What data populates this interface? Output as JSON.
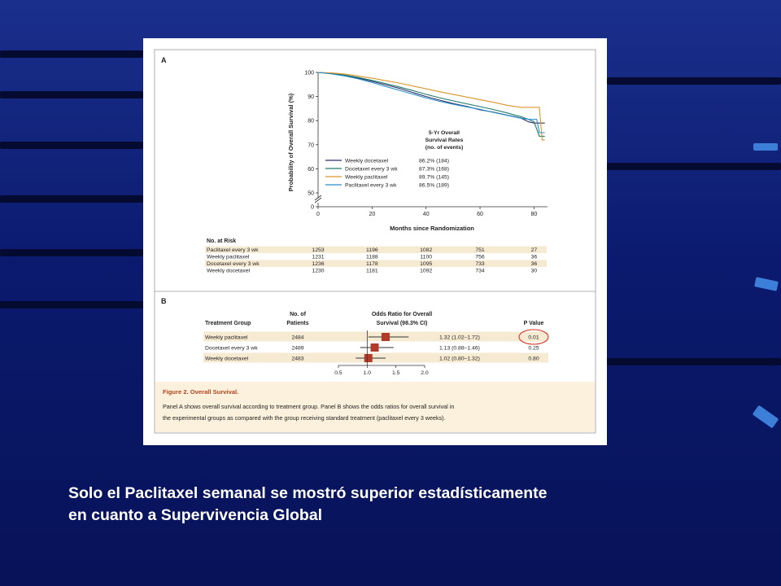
{
  "slide": {
    "caption_line1": "Solo el Paclitaxel semanal se mostró superior estadísticamente",
    "caption_line2": "en cuanto a Supervivencia Global",
    "background_color": "#0b1a6e"
  },
  "figure": {
    "panel_a_label": "A",
    "panel_b_label": "B",
    "caption_title": "Figure 2. Overall Survival.",
    "caption_line1": "Panel A shows overall survival according to treatment group. Panel B shows the odds ratios for overall survival in",
    "caption_line2": "the experimental groups as compared with the group receiving standard treatment (paclitaxel every 3 weeks)."
  },
  "chart_data": [
    {
      "type": "line",
      "xlabel": "Months since Randomization",
      "ylabel": "Probability of Overall Survival (%)",
      "xlim": [
        0,
        85
      ],
      "ylim": [
        0,
        100
      ],
      "y_axis_break": true,
      "x_ticks": [
        "0",
        "20",
        "40",
        "60",
        "80"
      ],
      "y_ticks": [
        "0",
        "50",
        "60",
        "70",
        "80",
        "90",
        "100"
      ],
      "legend_title": [
        "5-Yr Overall",
        "Survival Rates",
        "(no. of events)"
      ],
      "legend_position": "lower-center",
      "series": [
        {
          "name": "Weekly docetaxel",
          "rate": "86.2% (184)",
          "color": "#2b2f6b",
          "x": [
            0,
            5,
            10,
            15,
            20,
            25,
            30,
            35,
            40,
            45,
            50,
            55,
            60,
            65,
            70,
            75,
            78,
            80,
            82,
            84
          ],
          "y": [
            100,
            99.6,
            98.8,
            97.6,
            96.3,
            94.9,
            93.4,
            91.7,
            90,
            88.5,
            87.1,
            85.9,
            84.5,
            83.5,
            82.3,
            81.1,
            79.5,
            79,
            79,
            79
          ]
        },
        {
          "name": "Docetaxel every 3 wk",
          "rate": "87.3% (168)",
          "color": "#1f7a6b",
          "x": [
            0,
            5,
            10,
            15,
            20,
            25,
            30,
            35,
            40,
            45,
            50,
            55,
            60,
            65,
            70,
            75,
            78,
            80,
            81,
            82,
            84
          ],
          "y": [
            100,
            99.6,
            98.9,
            97.9,
            96.7,
            95.4,
            94,
            92.5,
            90.9,
            89.5,
            88.2,
            87,
            85.8,
            84.6,
            83.2,
            81.7,
            80.5,
            79.5,
            76.5,
            73.5,
            73.5
          ]
        },
        {
          "name": "Weekly paclitaxel",
          "rate": "89.7% (145)",
          "color": "#d9962a",
          "x": [
            0,
            5,
            10,
            15,
            20,
            25,
            30,
            35,
            40,
            45,
            50,
            55,
            60,
            65,
            70,
            75,
            78,
            80,
            82,
            83,
            84
          ],
          "y": [
            100,
            99.8,
            99.3,
            98.5,
            97.6,
            96.6,
            95.6,
            94.4,
            93.2,
            92,
            90.9,
            89.8,
            88.7,
            87.6,
            86.4,
            85.5,
            85.5,
            85.5,
            85.5,
            72,
            72
          ]
        },
        {
          "name": "Paclitaxel every 3 wk",
          "rate": "86.5% (189)",
          "color": "#2a8fc9",
          "x": [
            0,
            5,
            10,
            15,
            20,
            25,
            30,
            35,
            40,
            45,
            50,
            55,
            60,
            65,
            70,
            75,
            78,
            80,
            81,
            82,
            84
          ],
          "y": [
            100,
            99.4,
            98.5,
            97.3,
            95.8,
            94.2,
            92.6,
            91,
            89.4,
            88,
            86.8,
            85.7,
            84.7,
            83.4,
            82.2,
            81,
            80.5,
            80.5,
            80.5,
            75,
            75
          ]
        }
      ],
      "risk_table": {
        "title": "No. at Risk",
        "rows": [
          {
            "label": "Paclitaxel every 3 wk",
            "values": [
              "1253",
              "1196",
              "1082",
              "751",
              "27"
            ]
          },
          {
            "label": "Weekly paclitaxel",
            "values": [
              "1231",
              "1188",
              "1100",
              "756",
              "36"
            ]
          },
          {
            "label": "Docetaxel every 3 wk",
            "values": [
              "1236",
              "1178",
              "1095",
              "733",
              "36"
            ]
          },
          {
            "label": "Weekly docetaxel",
            "values": [
              "1230",
              "1181",
              "1092",
              "734",
              "30"
            ]
          }
        ]
      }
    },
    {
      "type": "forest",
      "headers": {
        "group": "Treatment Group",
        "patients_1": "No. of",
        "patients_2": "Patients",
        "or_1": "Odds Ratio for Overall",
        "or_2": "Survival (98.3% CI)",
        "p": "P Value"
      },
      "xlim": [
        0.5,
        2.0
      ],
      "x_ticks": [
        "0.5",
        "1.0",
        "1.5",
        "2.0"
      ],
      "reference_line": 1.0,
      "marker_color": "#b23a2a",
      "highlight_color": "#d8322a",
      "rows": [
        {
          "group": "Weekly paclitaxel",
          "patients": "2484",
          "or": 1.32,
          "lo": 1.02,
          "hi": 1.72,
          "ci_text": "1.32 (1.02–1.72)",
          "p": "0.01",
          "highlight": true
        },
        {
          "group": "Docetaxel every 3 wk",
          "patients": "2489",
          "or": 1.13,
          "lo": 0.88,
          "hi": 1.46,
          "ci_text": "1.13 (0.88–1.46)",
          "p": "0.25",
          "highlight": false
        },
        {
          "group": "Weekly docetaxel",
          "patients": "2483",
          "or": 1.02,
          "lo": 0.8,
          "hi": 1.32,
          "ci_text": "1.02 (0.80–1.32)",
          "p": "0.80",
          "highlight": false
        }
      ]
    }
  ]
}
